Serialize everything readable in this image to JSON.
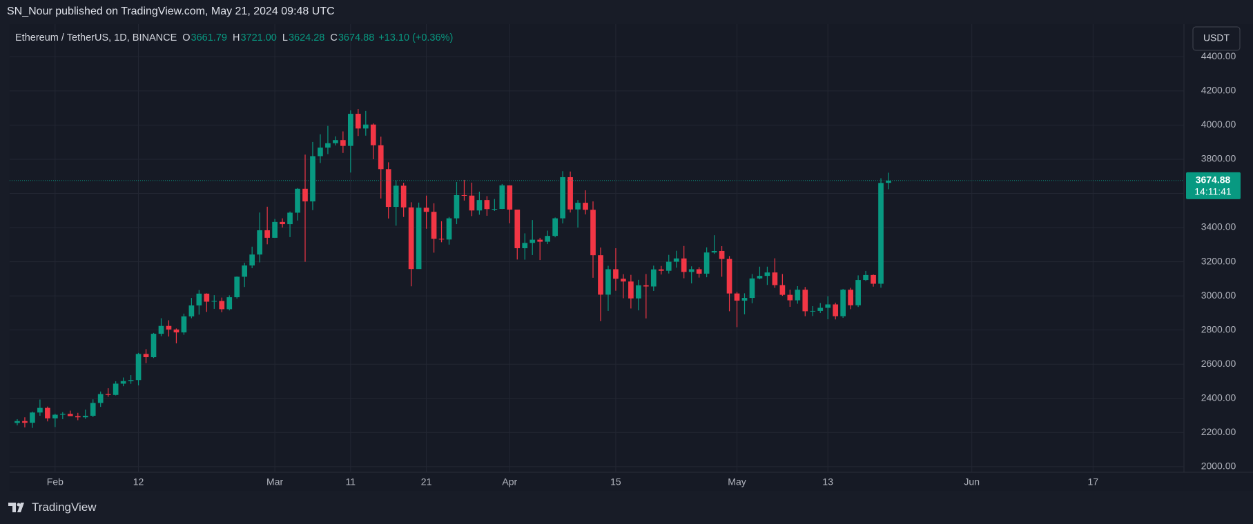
{
  "banner": "SN_Nour published on TradingView.com, May 21, 2024 09:48 UTC",
  "footer": "TradingView",
  "header": {
    "symbol": "Ethereum / TetherUS, 1D, BINANCE",
    "ohlc": [
      {
        "key": "O",
        "value": "3661.79"
      },
      {
        "key": "H",
        "value": "3721.00"
      },
      {
        "key": "L",
        "value": "3624.28"
      },
      {
        "key": "C",
        "value": "3674.88"
      }
    ],
    "change": "+13.10 (+0.36%)"
  },
  "currency": "USDT",
  "chart_data": {
    "type": "candlestick",
    "up_color": "#089981",
    "down_color": "#f23645",
    "grid": true,
    "x": [
      "2024-01-27",
      "2024-01-28",
      "2024-01-29",
      "2024-01-30",
      "2024-01-31",
      "2024-02-01",
      "2024-02-02",
      "2024-02-03",
      "2024-02-04",
      "2024-02-05",
      "2024-02-06",
      "2024-02-07",
      "2024-02-08",
      "2024-02-09",
      "2024-02-10",
      "2024-02-11",
      "2024-02-12",
      "2024-02-13",
      "2024-02-14",
      "2024-02-15",
      "2024-02-16",
      "2024-02-17",
      "2024-02-18",
      "2024-02-19",
      "2024-02-20",
      "2024-02-21",
      "2024-02-22",
      "2024-02-23",
      "2024-02-24",
      "2024-02-25",
      "2024-02-26",
      "2024-02-27",
      "2024-02-28",
      "2024-02-29",
      "2024-03-01",
      "2024-03-02",
      "2024-03-03",
      "2024-03-04",
      "2024-03-05",
      "2024-03-06",
      "2024-03-07",
      "2024-03-08",
      "2024-03-09",
      "2024-03-10",
      "2024-03-11",
      "2024-03-12",
      "2024-03-13",
      "2024-03-14",
      "2024-03-15",
      "2024-03-16",
      "2024-03-17",
      "2024-03-18",
      "2024-03-19",
      "2024-03-20",
      "2024-03-21",
      "2024-03-22",
      "2024-03-23",
      "2024-03-24",
      "2024-03-25",
      "2024-03-26",
      "2024-03-27",
      "2024-03-28",
      "2024-03-29",
      "2024-03-30",
      "2024-03-31",
      "2024-04-01",
      "2024-04-02",
      "2024-04-03",
      "2024-04-04",
      "2024-04-05",
      "2024-04-06",
      "2024-04-07",
      "2024-04-08",
      "2024-04-09",
      "2024-04-10",
      "2024-04-11",
      "2024-04-12",
      "2024-04-13",
      "2024-04-14",
      "2024-04-15",
      "2024-04-16",
      "2024-04-17",
      "2024-04-18",
      "2024-04-19",
      "2024-04-20",
      "2024-04-21",
      "2024-04-22",
      "2024-04-23",
      "2024-04-24",
      "2024-04-25",
      "2024-04-26",
      "2024-04-27",
      "2024-04-28",
      "2024-04-29",
      "2024-04-30",
      "2024-05-01",
      "2024-05-02",
      "2024-05-03",
      "2024-05-04",
      "2024-05-05",
      "2024-05-06",
      "2024-05-07",
      "2024-05-08",
      "2024-05-09",
      "2024-05-10",
      "2024-05-11",
      "2024-05-12",
      "2024-05-13",
      "2024-05-14",
      "2024-05-15",
      "2024-05-16",
      "2024-05-17",
      "2024-05-18",
      "2024-05-19",
      "2024-05-20",
      "2024-05-21"
    ],
    "open": [
      2256,
      2267,
      2257,
      2317,
      2344,
      2283,
      2304,
      2309,
      2296,
      2289,
      2298,
      2373,
      2425,
      2420,
      2486,
      2501,
      2507,
      2660,
      2641,
      2778,
      2824,
      2803,
      2786,
      2880,
      2944,
      3013,
      2966,
      2970,
      2922,
      2992,
      3112,
      3178,
      3242,
      3384,
      3340,
      3433,
      3420,
      3487,
      3627,
      3553,
      3818,
      3868,
      3894,
      3912,
      3878,
      4066,
      3980,
      4003,
      3882,
      3742,
      3521,
      3645,
      3518,
      3157,
      3516,
      3492,
      3334,
      3330,
      3454,
      3590,
      3587,
      3500,
      3561,
      3508,
      3509,
      3647,
      3505,
      3279,
      3310,
      3329,
      3317,
      3351,
      3454,
      3695,
      3506,
      3545,
      3504,
      3238,
      3007,
      3156,
      3100,
      3084,
      2985,
      3062,
      3055,
      3155,
      3147,
      3200,
      3219,
      3140,
      3156,
      3130,
      3254,
      3263,
      3216,
      3014,
      2972,
      2988,
      3102,
      3117,
      3137,
      3063,
      3006,
      2974,
      3036,
      2910,
      2912,
      2930,
      2950,
      2881,
      3036,
      2945,
      3093,
      3122,
      3071,
      3661.79
    ],
    "high": [
      2278,
      2289,
      2322,
      2393,
      2352,
      2310,
      2319,
      2328,
      2315,
      2334,
      2394,
      2440,
      2459,
      2500,
      2522,
      2536,
      2666,
      2688,
      2783,
      2869,
      2857,
      2809,
      2896,
      2988,
      3034,
      3015,
      3004,
      2990,
      3003,
      3114,
      3194,
      3288,
      3488,
      3522,
      3450,
      3454,
      3494,
      3631,
      3827,
      3901,
      3946,
      3995,
      3934,
      3963,
      4086,
      4094,
      4083,
      4010,
      3932,
      3782,
      3676,
      3662,
      3548,
      3546,
      3587,
      3542,
      3437,
      3462,
      3667,
      3679,
      3663,
      3610,
      3584,
      3567,
      3655,
      3647,
      3505,
      3366,
      3444,
      3340,
      3382,
      3459,
      3730,
      3728,
      3561,
      3618,
      3553,
      3283,
      3176,
      3279,
      3127,
      3123,
      3094,
      3128,
      3177,
      3175,
      3240,
      3264,
      3292,
      3173,
      3168,
      3284,
      3355,
      3291,
      3233,
      3023,
      3015,
      3128,
      3171,
      3171,
      3220,
      3128,
      3036,
      3057,
      3052,
      2940,
      2958,
      2998,
      2960,
      3041,
      3047,
      3120,
      3146,
      3125,
      3689,
      3721
    ],
    "low": [
      2242,
      2230,
      2227,
      2298,
      2265,
      2232,
      2278,
      2296,
      2272,
      2280,
      2290,
      2350,
      2409,
      2417,
      2471,
      2485,
      2476,
      2606,
      2636,
      2764,
      2762,
      2722,
      2772,
      2869,
      2890,
      2906,
      2924,
      2904,
      2915,
      2984,
      3052,
      3162,
      3196,
      3302,
      3339,
      3400,
      3344,
      3441,
      3200,
      3502,
      3778,
      3830,
      3881,
      3837,
      3722,
      3936,
      3938,
      3800,
      3570,
      3453,
      3411,
      3462,
      3056,
      3160,
      3393,
      3253,
      3314,
      3300,
      3420,
      3558,
      3467,
      3475,
      3469,
      3497,
      3508,
      3425,
      3213,
      3212,
      3239,
      3210,
      3303,
      3343,
      3424,
      3488,
      3400,
      3477,
      3106,
      2852,
      2912,
      3030,
      2986,
      2926,
      2915,
      2868,
      3029,
      3125,
      3131,
      3165,
      3103,
      3073,
      3107,
      3109,
      3246,
      3112,
      2910,
      2817,
      2892,
      2957,
      3097,
      3064,
      3047,
      3000,
      2936,
      2954,
      2881,
      2882,
      2900,
      2863,
      2862,
      2871,
      2922,
      2935,
      3087,
      3054,
      3048,
      3624.28
    ],
    "close": [
      2267,
      2257,
      2317,
      2344,
      2283,
      2304,
      2309,
      2296,
      2289,
      2298,
      2373,
      2425,
      2420,
      2486,
      2501,
      2507,
      2660,
      2641,
      2778,
      2824,
      2803,
      2786,
      2880,
      2944,
      3013,
      2966,
      2970,
      2922,
      2992,
      3112,
      3178,
      3242,
      3384,
      3340,
      3433,
      3420,
      3487,
      3627,
      3553,
      3818,
      3868,
      3894,
      3912,
      3878,
      4066,
      3980,
      4003,
      3882,
      3742,
      3521,
      3645,
      3518,
      3157,
      3516,
      3492,
      3334,
      3330,
      3454,
      3590,
      3587,
      3500,
      3561,
      3508,
      3509,
      3647,
      3505,
      3279,
      3310,
      3329,
      3317,
      3351,
      3454,
      3695,
      3506,
      3545,
      3504,
      3238,
      3007,
      3156,
      3100,
      3084,
      2985,
      3062,
      3055,
      3155,
      3147,
      3200,
      3219,
      3140,
      3156,
      3130,
      3254,
      3263,
      3216,
      3014,
      2972,
      2988,
      3102,
      3117,
      3137,
      3063,
      3006,
      2974,
      3036,
      2910,
      2912,
      2930,
      2950,
      2881,
      3036,
      2945,
      3093,
      3122,
      3071,
      3661,
      3674.88
    ],
    "last_price": {
      "value": 3674.88,
      "label": "3674.88"
    },
    "countdown": "14:11:41",
    "xlim": [
      "2024-01-26",
      "2024-06-29"
    ],
    "xticks": [
      {
        "value": "2024-02-01",
        "label": "Feb"
      },
      {
        "value": "2024-02-12",
        "label": "12"
      },
      {
        "value": "2024-03-01",
        "label": "Mar"
      },
      {
        "value": "2024-03-11",
        "label": "11"
      },
      {
        "value": "2024-03-21",
        "label": "21"
      },
      {
        "value": "2024-04-01",
        "label": "Apr"
      },
      {
        "value": "2024-04-15",
        "label": "15"
      },
      {
        "value": "2024-05-01",
        "label": "May"
      },
      {
        "value": "2024-05-13",
        "label": "13"
      },
      {
        "value": "2024-06-01",
        "label": "Jun"
      },
      {
        "value": "2024-06-17",
        "label": "17"
      }
    ],
    "ylim": [
      1967,
      4591
    ],
    "yticks": [
      {
        "value": 2000,
        "label": "2000.00"
      },
      {
        "value": 2200,
        "label": "2200.00"
      },
      {
        "value": 2400,
        "label": "2400.00"
      },
      {
        "value": 2600,
        "label": "2600.00"
      },
      {
        "value": 2800,
        "label": "2800.00"
      },
      {
        "value": 3000,
        "label": "3000.00"
      },
      {
        "value": 3200,
        "label": "3200.00"
      },
      {
        "value": 3400,
        "label": "3400.00"
      },
      {
        "value": 3600,
        "label": "3600.00"
      },
      {
        "value": 3800,
        "label": "3800.00"
      },
      {
        "value": 4000,
        "label": "4000.00"
      },
      {
        "value": 4200,
        "label": "4200.00"
      },
      {
        "value": 4400,
        "label": "4400.00"
      }
    ]
  }
}
